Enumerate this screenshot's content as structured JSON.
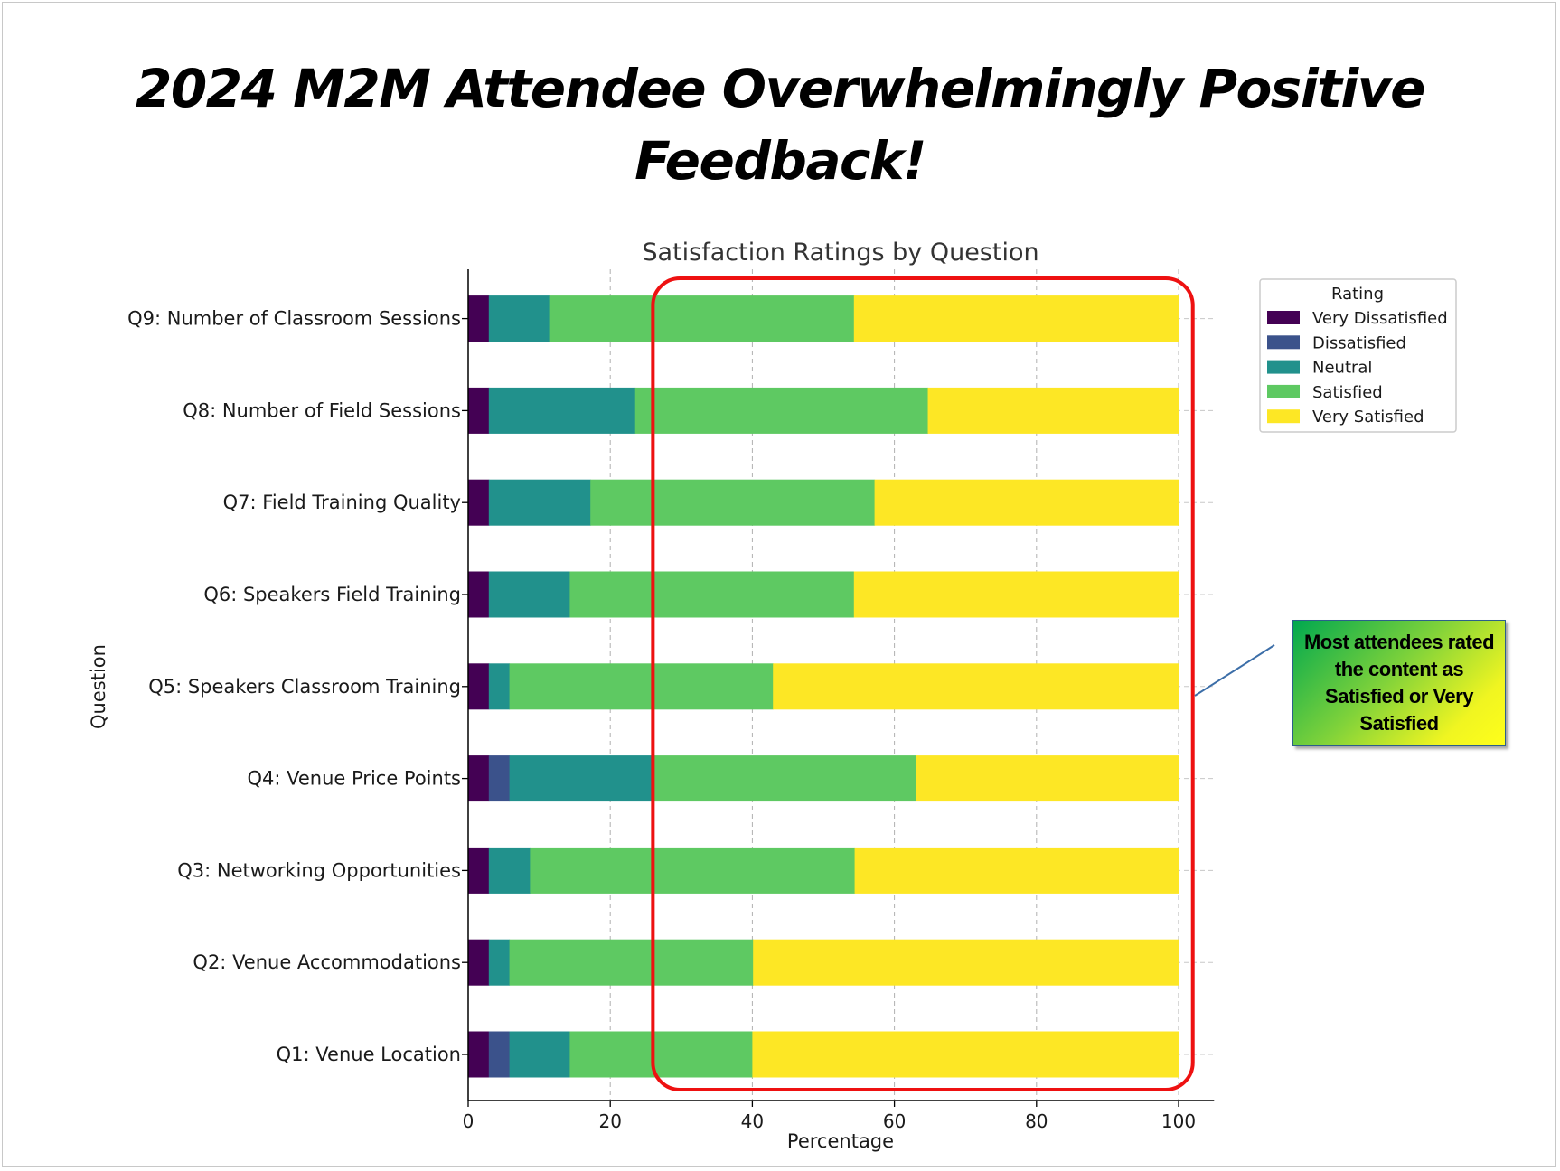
{
  "slide": {
    "title": "2024 M2M Attendee Overwhelmingly Positive Feedback!",
    "callout": "Most attendees rated the content as Satisfied or Very Satisfied"
  },
  "chart_data": {
    "type": "bar",
    "orientation": "horizontal",
    "stacked": true,
    "title": "Satisfaction Ratings by Question",
    "xlabel": "Percentage",
    "ylabel": "Question",
    "xlim": [
      0,
      105
    ],
    "xticks": [
      0,
      20,
      40,
      60,
      80,
      100
    ],
    "grid": true,
    "legend": {
      "title": "Rating",
      "placement": "top-right, outside plot"
    },
    "categories": [
      "Q1: Venue Location",
      "Q2: Venue Accommodations",
      "Q3: Networking Opportunities",
      "Q4: Venue Price Points",
      "Q5: Speakers Classroom Training",
      "Q6: Speakers Field Training",
      "Q7: Field Training Quality",
      "Q8: Number of Field Sessions",
      "Q9: Number of Classroom Sessions"
    ],
    "series": [
      {
        "name": "Very Dissatisfied",
        "color": "#440154",
        "values": [
          2.9,
          2.9,
          2.9,
          2.9,
          2.9,
          2.9,
          2.9,
          2.9,
          2.9
        ]
      },
      {
        "name": "Dissatisfied",
        "color": "#3b528b",
        "values": [
          2.9,
          0,
          0,
          2.9,
          0,
          0,
          0,
          0,
          0
        ]
      },
      {
        "name": "Neutral",
        "color": "#21918c",
        "values": [
          8.5,
          2.9,
          5.8,
          20.3,
          2.9,
          11.4,
          14.3,
          20.6,
          8.5
        ]
      },
      {
        "name": "Satisfied",
        "color": "#5ec962",
        "values": [
          25.7,
          34.3,
          45.7,
          36.9,
          37.1,
          40.0,
          40.0,
          41.2,
          42.9
        ]
      },
      {
        "name": "Very Satisfied",
        "color": "#fde725",
        "values": [
          60.0,
          59.9,
          45.6,
          37.0,
          57.1,
          45.7,
          42.8,
          35.3,
          45.7
        ]
      }
    ],
    "annotation": {
      "highlight_color": "#ee1111",
      "highlight_range": [
        26,
        102
      ]
    }
  }
}
